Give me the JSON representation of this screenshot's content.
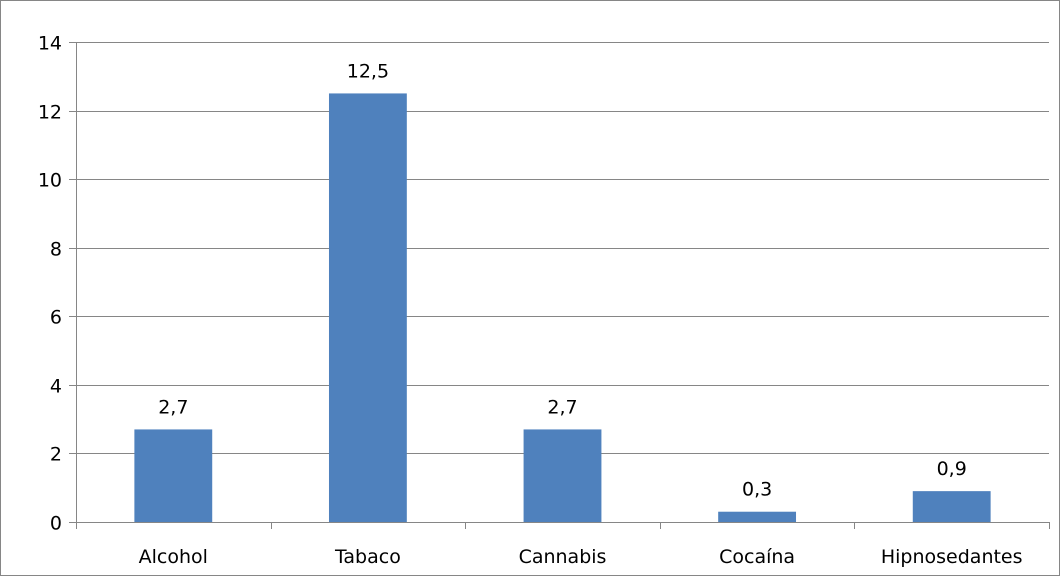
{
  "chart_data": {
    "type": "bar",
    "title": "",
    "xlabel": "",
    "ylabel": "",
    "categories": [
      "Alcohol",
      "Tabaco",
      "Cannabis",
      "Cocaína",
      "Hipnosedantes"
    ],
    "values": [
      2.7,
      12.5,
      2.7,
      0.3,
      0.9
    ],
    "value_labels": [
      "2,7",
      "12,5",
      "2,7",
      "0,3",
      "0,9"
    ],
    "ylim": [
      0,
      14
    ],
    "yticks": [
      0,
      2,
      4,
      6,
      8,
      10,
      12,
      14
    ],
    "grid": true,
    "legend": "none",
    "bar_color": "#4f81bd",
    "gridline_color": "#868686"
  }
}
